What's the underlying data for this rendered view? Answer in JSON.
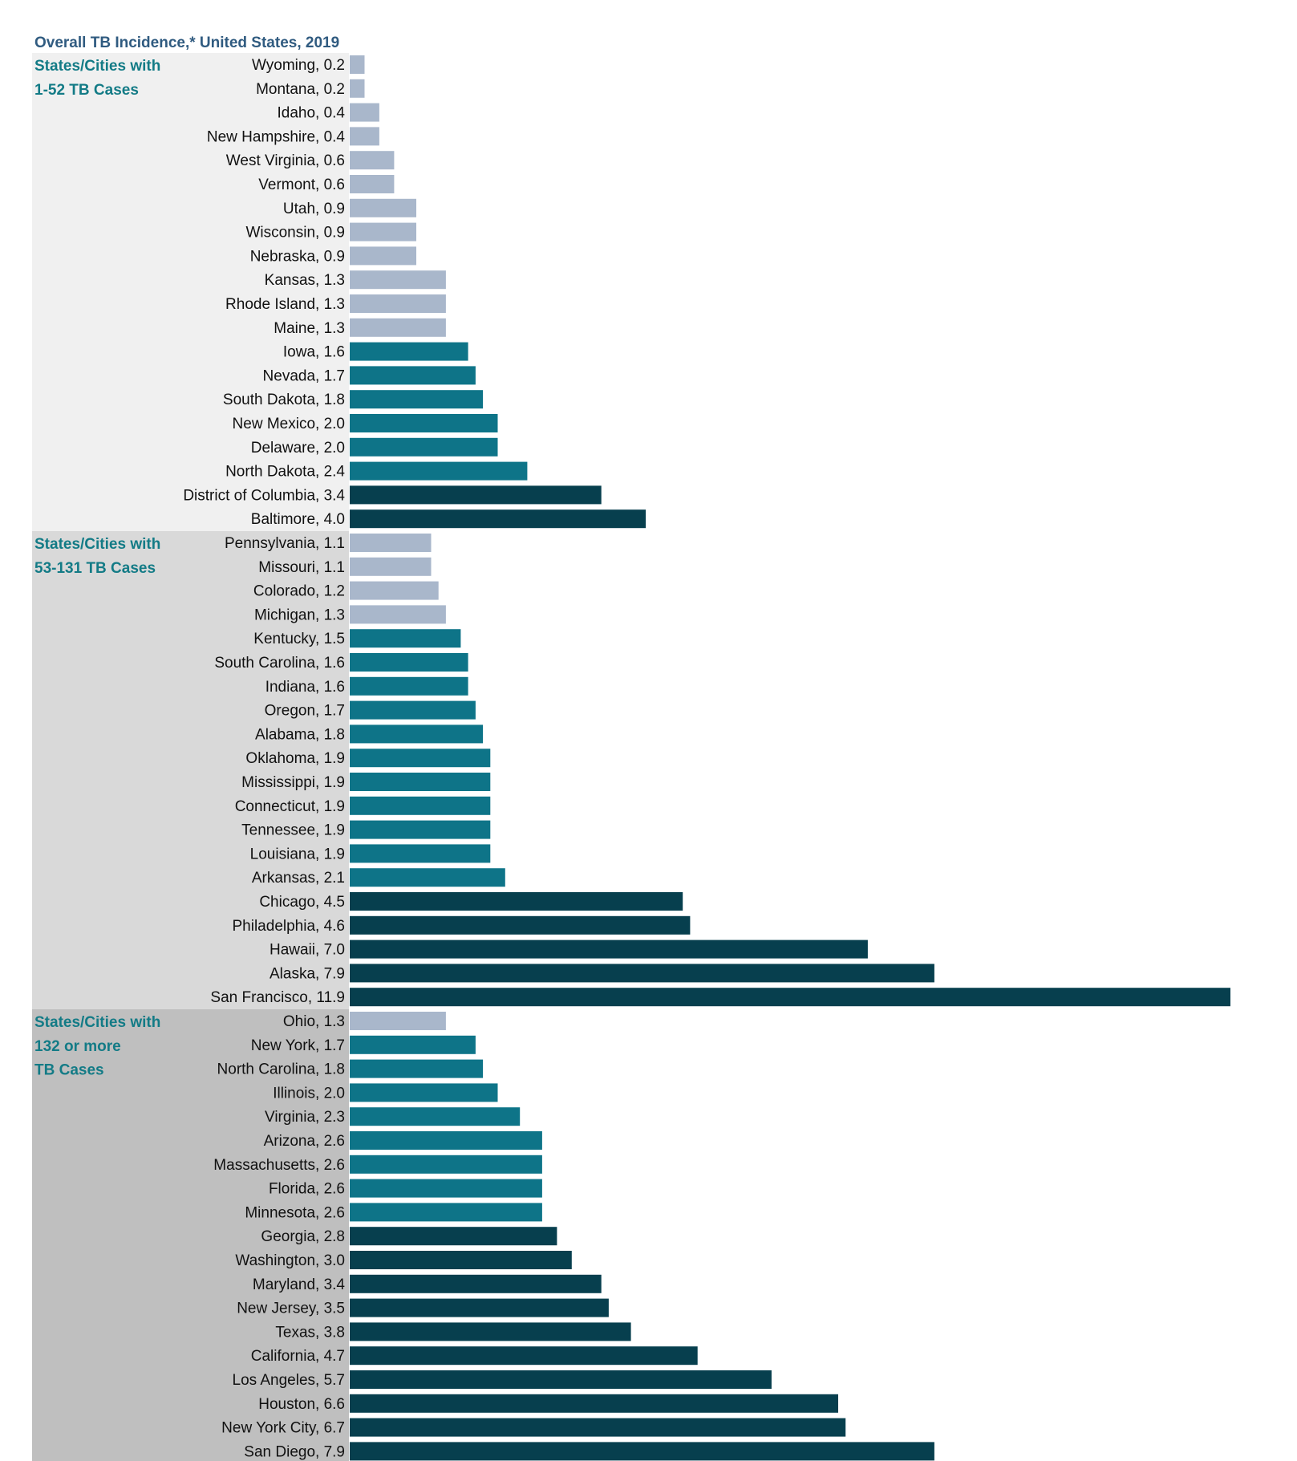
{
  "chart_data": {
    "type": "bar",
    "orientation": "horizontal",
    "title": "Overall TB Incidence,* United States, 2019",
    "xlabel": "",
    "ylabel": "",
    "xlim": [
      0,
      11.9
    ],
    "grid": false,
    "legend": "none",
    "colors": {
      "low": "#a9b7cb",
      "mid": "#0e7488",
      "high": "#073f4e"
    },
    "group_backgrounds": [
      "#f0f0f0",
      "#d9d9d9",
      "#bfbfbf"
    ],
    "groups": [
      {
        "label_lines": [
          "States/Cities with",
          "1-52 TB Cases"
        ],
        "items": [
          {
            "label": "Wyoming, 0.2",
            "name": "Wyoming",
            "value": 0.2,
            "level": "low"
          },
          {
            "label": "Montana, 0.2",
            "name": "Montana",
            "value": 0.2,
            "level": "low"
          },
          {
            "label": "Idaho, 0.4",
            "name": "Idaho",
            "value": 0.4,
            "level": "low"
          },
          {
            "label": "New Hampshire, 0.4",
            "name": "New Hampshire",
            "value": 0.4,
            "level": "low"
          },
          {
            "label": "West Virginia, 0.6",
            "name": "West Virginia",
            "value": 0.6,
            "level": "low"
          },
          {
            "label": "Vermont, 0.6",
            "name": "Vermont",
            "value": 0.6,
            "level": "low"
          },
          {
            "label": "Utah, 0.9",
            "name": "Utah",
            "value": 0.9,
            "level": "low"
          },
          {
            "label": "Wisconsin, 0.9",
            "name": "Wisconsin",
            "value": 0.9,
            "level": "low"
          },
          {
            "label": "Nebraska, 0.9",
            "name": "Nebraska",
            "value": 0.9,
            "level": "low"
          },
          {
            "label": "Kansas, 1.3",
            "name": "Kansas",
            "value": 1.3,
            "level": "low"
          },
          {
            "label": "Rhode Island, 1.3",
            "name": "Rhode Island",
            "value": 1.3,
            "level": "low"
          },
          {
            "label": "Maine, 1.3",
            "name": "Maine",
            "value": 1.3,
            "level": "low"
          },
          {
            "label": "Iowa, 1.6",
            "name": "Iowa",
            "value": 1.6,
            "level": "mid"
          },
          {
            "label": "Nevada, 1.7",
            "name": "Nevada",
            "value": 1.7,
            "level": "mid"
          },
          {
            "label": "South Dakota, 1.8",
            "name": "South Dakota",
            "value": 1.8,
            "level": "mid"
          },
          {
            "label": "New Mexico, 2.0",
            "name": "New Mexico",
            "value": 2.0,
            "level": "mid"
          },
          {
            "label": "Delaware, 2.0",
            "name": "Delaware",
            "value": 2.0,
            "level": "mid"
          },
          {
            "label": "North Dakota, 2.4",
            "name": "North Dakota",
            "value": 2.4,
            "level": "mid"
          },
          {
            "label": "District of Columbia, 3.4",
            "name": "District of Columbia",
            "value": 3.4,
            "level": "high"
          },
          {
            "label": "Baltimore, 4.0",
            "name": "Baltimore",
            "value": 4.0,
            "level": "high"
          }
        ]
      },
      {
        "label_lines": [
          "States/Cities with",
          "53-131 TB Cases"
        ],
        "items": [
          {
            "label": "Pennsylvania, 1.1",
            "name": "Pennsylvania",
            "value": 1.1,
            "level": "low"
          },
          {
            "label": "Missouri, 1.1",
            "name": "Missouri",
            "value": 1.1,
            "level": "low"
          },
          {
            "label": "Colorado, 1.2",
            "name": "Colorado",
            "value": 1.2,
            "level": "low"
          },
          {
            "label": "Michigan, 1.3",
            "name": "Michigan",
            "value": 1.3,
            "level": "low"
          },
          {
            "label": "Kentucky, 1.5",
            "name": "Kentucky",
            "value": 1.5,
            "level": "mid"
          },
          {
            "label": "South Carolina, 1.6",
            "name": "South Carolina",
            "value": 1.6,
            "level": "mid"
          },
          {
            "label": "Indiana, 1.6",
            "name": "Indiana",
            "value": 1.6,
            "level": "mid"
          },
          {
            "label": "Oregon, 1.7",
            "name": "Oregon",
            "value": 1.7,
            "level": "mid"
          },
          {
            "label": "Alabama, 1.8",
            "name": "Alabama",
            "value": 1.8,
            "level": "mid"
          },
          {
            "label": "Oklahoma, 1.9",
            "name": "Oklahoma",
            "value": 1.9,
            "level": "mid"
          },
          {
            "label": "Mississippi, 1.9",
            "name": "Mississippi",
            "value": 1.9,
            "level": "mid"
          },
          {
            "label": "Connecticut, 1.9",
            "name": "Connecticut",
            "value": 1.9,
            "level": "mid"
          },
          {
            "label": "Tennessee, 1.9",
            "name": "Tennessee",
            "value": 1.9,
            "level": "mid"
          },
          {
            "label": "Louisiana, 1.9",
            "name": "Louisiana",
            "value": 1.9,
            "level": "mid"
          },
          {
            "label": "Arkansas, 2.1",
            "name": "Arkansas",
            "value": 2.1,
            "level": "mid"
          },
          {
            "label": "Chicago, 4.5",
            "name": "Chicago",
            "value": 4.5,
            "level": "high"
          },
          {
            "label": "Philadelphia, 4.6",
            "name": "Philadelphia",
            "value": 4.6,
            "level": "high"
          },
          {
            "label": "Hawaii, 7.0",
            "name": "Hawaii",
            "value": 7.0,
            "level": "high"
          },
          {
            "label": "Alaska, 7.9",
            "name": "Alaska",
            "value": 7.9,
            "level": "high"
          },
          {
            "label": "San Francisco, 11.9",
            "name": "San Francisco",
            "value": 11.9,
            "level": "high"
          }
        ]
      },
      {
        "label_lines": [
          "States/Cities with",
          "132 or more",
          "TB Cases"
        ],
        "items": [
          {
            "label": "Ohio, 1.3",
            "name": "Ohio",
            "value": 1.3,
            "level": "low"
          },
          {
            "label": "New York, 1.7",
            "name": "New York",
            "value": 1.7,
            "level": "mid"
          },
          {
            "label": "North Carolina, 1.8",
            "name": "North Carolina",
            "value": 1.8,
            "level": "mid"
          },
          {
            "label": "Illinois, 2.0",
            "name": "Illinois",
            "value": 2.0,
            "level": "mid"
          },
          {
            "label": "Virginia, 2.3",
            "name": "Virginia",
            "value": 2.3,
            "level": "mid"
          },
          {
            "label": "Arizona, 2.6",
            "name": "Arizona",
            "value": 2.6,
            "level": "mid"
          },
          {
            "label": "Massachusetts, 2.6",
            "name": "Massachusetts",
            "value": 2.6,
            "level": "mid"
          },
          {
            "label": "Florida, 2.6",
            "name": "Florida",
            "value": 2.6,
            "level": "mid"
          },
          {
            "label": "Minnesota, 2.6",
            "name": "Minnesota",
            "value": 2.6,
            "level": "mid"
          },
          {
            "label": "Georgia, 2.8",
            "name": "Georgia",
            "value": 2.8,
            "level": "high"
          },
          {
            "label": "Washington, 3.0",
            "name": "Washington",
            "value": 3.0,
            "level": "high"
          },
          {
            "label": "Maryland, 3.4",
            "name": "Maryland",
            "value": 3.4,
            "level": "high"
          },
          {
            "label": "New Jersey, 3.5",
            "name": "New Jersey",
            "value": 3.5,
            "level": "high"
          },
          {
            "label": "Texas, 3.8",
            "name": "Texas",
            "value": 3.8,
            "level": "high"
          },
          {
            "label": "California, 4.7",
            "name": "California",
            "value": 4.7,
            "level": "high"
          },
          {
            "label": "Los Angeles, 5.7",
            "name": "Los Angeles",
            "value": 5.7,
            "level": "high"
          },
          {
            "label": "Houston, 6.6",
            "name": "Houston",
            "value": 6.6,
            "level": "high"
          },
          {
            "label": "New York City, 6.7",
            "name": "New York City",
            "value": 6.7,
            "level": "high"
          },
          {
            "label": "San Diego, 7.9",
            "name": "San Diego",
            "value": 7.9,
            "level": "high"
          }
        ]
      }
    ]
  }
}
